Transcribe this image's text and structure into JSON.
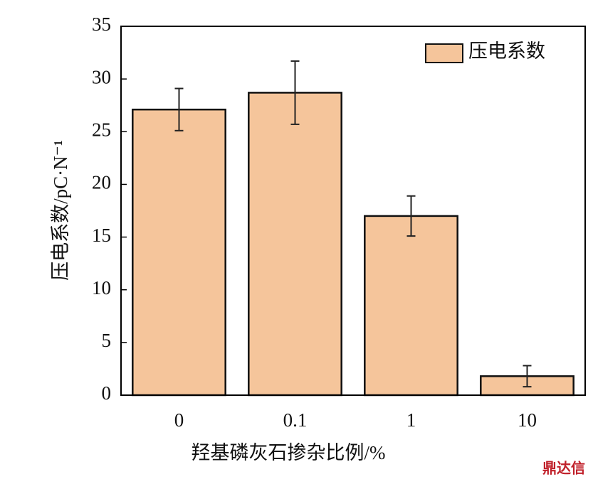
{
  "chart_data": {
    "type": "bar",
    "categories": [
      "0",
      "0.1",
      "1",
      "10"
    ],
    "series": [
      {
        "name": "压电系数",
        "color": "#f5c59b",
        "values": [
          27.1,
          28.7,
          17.0,
          1.8
        ],
        "errors": [
          2.0,
          3.0,
          1.9,
          1.0
        ]
      }
    ],
    "x_label": "羟基磷灰石掺杂比例/%",
    "y_label": "压电系数/pC·N⁻¹",
    "ylim": [
      0,
      35
    ],
    "yticks": [
      0,
      5,
      10,
      15,
      20,
      25,
      30,
      35
    ],
    "legend": "upper right",
    "watermark": "鼎达信"
  }
}
